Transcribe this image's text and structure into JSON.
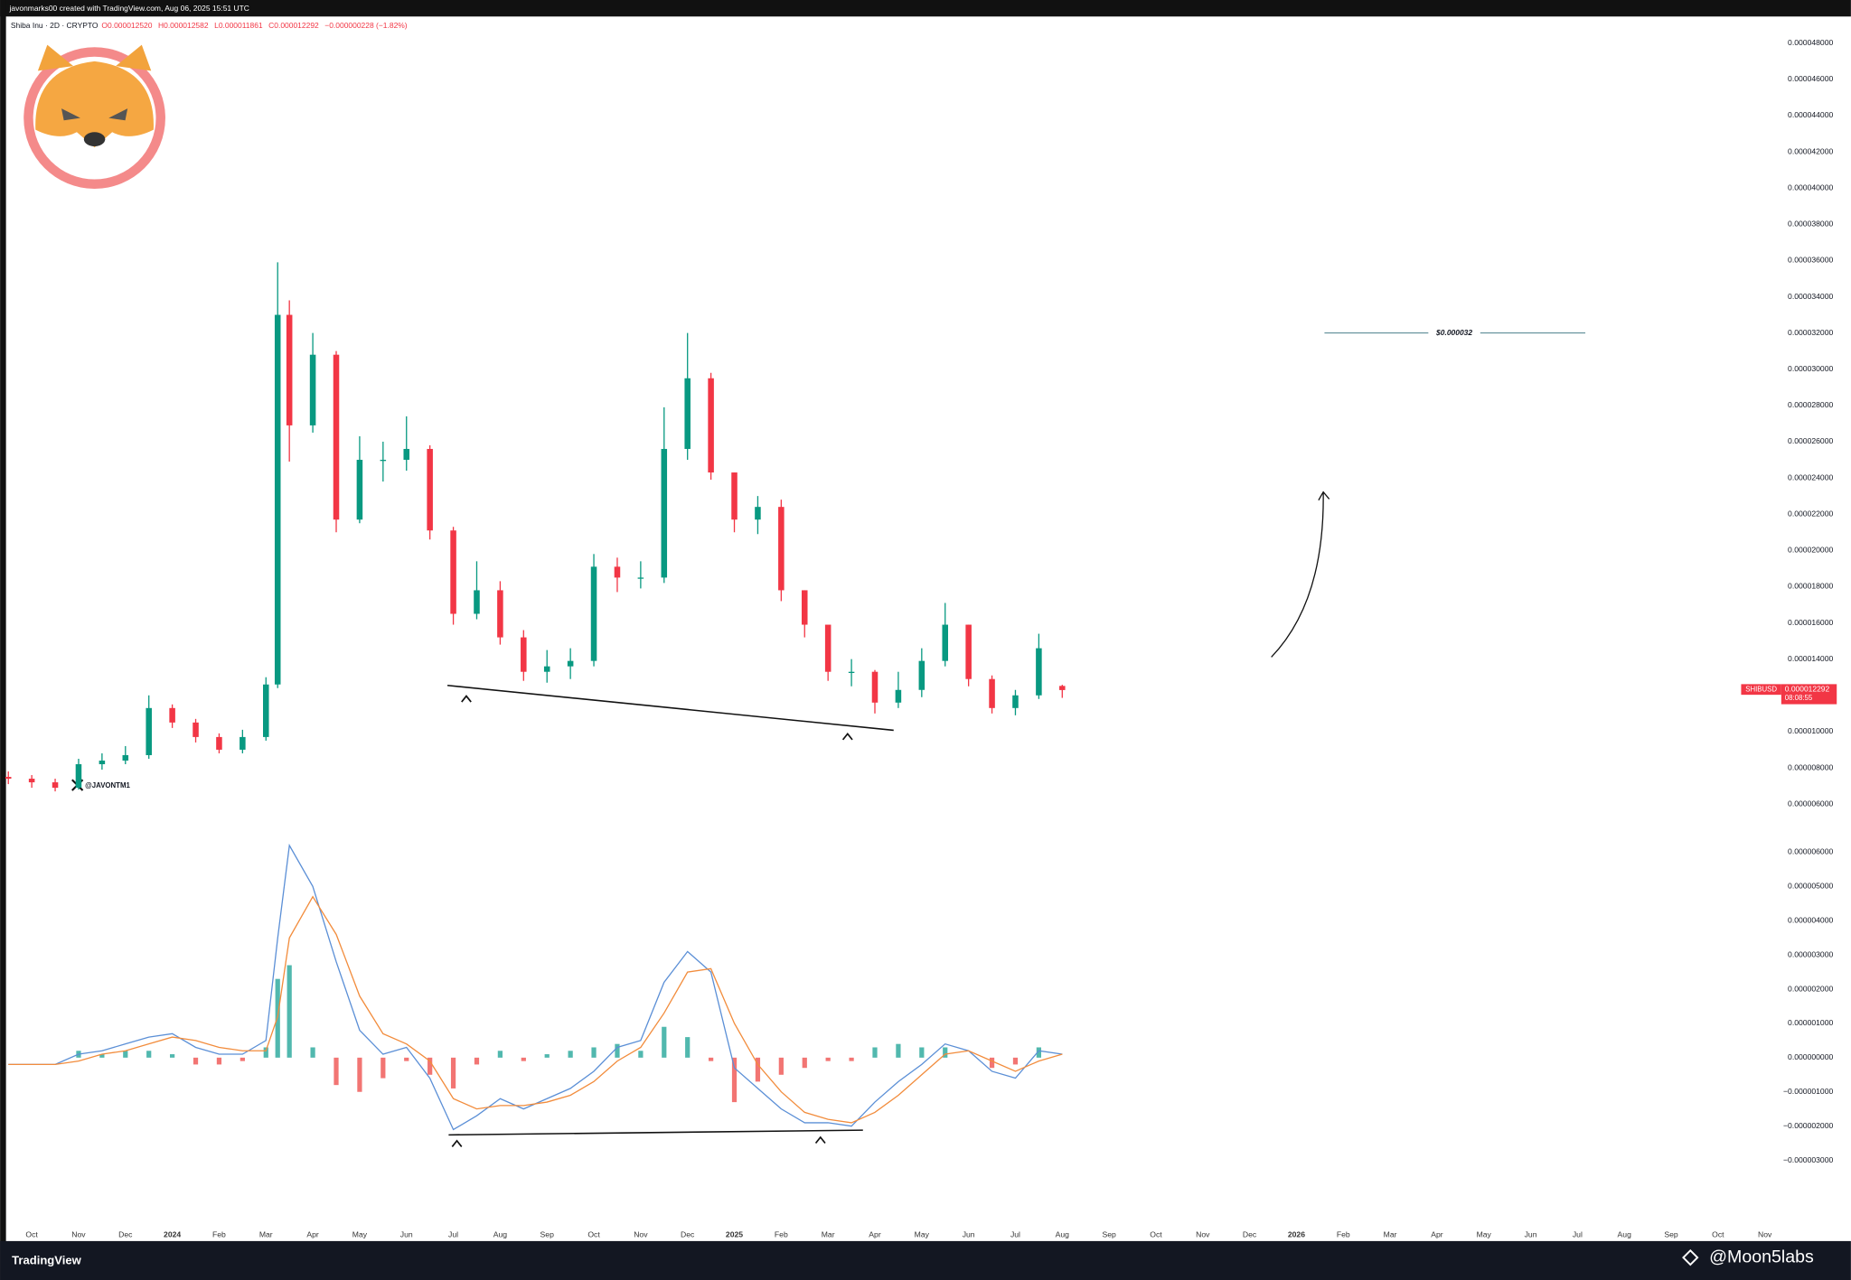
{
  "header": {
    "credit": "javonmarks00 created with TradingView.com, Aug 06, 2025 15:51 UTC",
    "footer_brand": "TradingView",
    "watermark": "@Moon5labs",
    "handle": "@JAVONTM1"
  },
  "chart_data": [
    {
      "type": "candlestick",
      "title": "Shiba Inu · 2D · CRYPTO",
      "ohlc_legend": [
        "O0.000012520",
        "H0.000012582",
        "L0.000011861",
        "C0.000012292",
        "−0.000000228 (−1.82%)"
      ],
      "up_color": "#089981",
      "down_color": "#f23645",
      "x": [
        -0.5,
        0,
        0.5,
        1,
        1.5,
        2,
        2.5,
        3,
        3.5,
        4,
        4.5,
        5,
        5.25,
        5.5,
        6,
        6.5,
        7,
        7.5,
        8,
        8.5,
        9,
        9.5,
        10,
        10.5,
        11,
        11.5,
        12,
        12.5,
        13,
        13.5,
        14,
        14.5,
        15,
        15.5,
        16,
        16.5,
        17,
        17.5,
        18,
        18.5,
        19,
        19.5,
        20,
        20.5,
        21,
        21.5,
        22
      ],
      "open": [
        7.5e-06,
        7.4e-06,
        7.2e-06,
        6.9e-06,
        8.2e-06,
        8.4e-06,
        8.7e-06,
        1.13e-05,
        1.05e-05,
        9.7e-06,
        9e-06,
        9.7e-06,
        1.26e-05,
        3.3e-05,
        2.69e-05,
        3.08e-05,
        2.17e-05,
        2.5e-05,
        2.5e-05,
        2.56e-05,
        2.11e-05,
        1.65e-05,
        1.78e-05,
        1.52e-05,
        1.33e-05,
        1.36e-05,
        1.39e-05,
        1.91e-05,
        1.85e-05,
        1.85e-05,
        2.56e-05,
        2.95e-05,
        2.43e-05,
        2.17e-05,
        2.24e-05,
        1.78e-05,
        1.59e-05,
        1.33e-05,
        1.33e-05,
        1.16e-05,
        1.23e-05,
        1.39e-05,
        1.59e-05,
        1.29e-05,
        1.13e-05,
        1.2e-05,
        1.252e-05
      ],
      "high": [
        7.8e-06,
        7.6e-06,
        7.4e-06,
        8.5e-06,
        8.8e-06,
        9.2e-06,
        1.2e-05,
        1.15e-05,
        1.07e-05,
        9.9e-06,
        1.01e-05,
        1.3e-05,
        3.59e-05,
        3.38e-05,
        3.2e-05,
        3.1e-05,
        2.63e-05,
        2.6e-05,
        2.74e-05,
        2.58e-05,
        2.13e-05,
        1.94e-05,
        1.83e-05,
        1.56e-05,
        1.45e-05,
        1.46e-05,
        1.98e-05,
        1.96e-05,
        1.94e-05,
        2.79e-05,
        3.2e-05,
        2.98e-05,
        2.43e-05,
        2.3e-05,
        2.28e-05,
        1.78e-05,
        1.58e-05,
        1.4e-05,
        1.34e-05,
        1.33e-05,
        1.46e-05,
        1.71e-05,
        1.59e-05,
        1.31e-05,
        1.23e-05,
        1.54e-05,
        1.2582e-05
      ],
      "low": [
        7.1e-06,
        6.9e-06,
        6.7e-06,
        6.8e-06,
        7.9e-06,
        8.2e-06,
        8.5e-06,
        1.02e-05,
        9.4e-06,
        8.8e-06,
        8.8e-06,
        9.5e-06,
        1.24e-05,
        2.49e-05,
        2.65e-05,
        2.1e-05,
        2.15e-05,
        2.38e-05,
        2.44e-05,
        2.06e-05,
        1.59e-05,
        1.62e-05,
        1.48e-05,
        1.28e-05,
        1.27e-05,
        1.29e-05,
        1.36e-05,
        1.77e-05,
        1.79e-05,
        1.82e-05,
        2.5e-05,
        2.39e-05,
        2.1e-05,
        2.09e-05,
        1.72e-05,
        1.52e-05,
        1.28e-05,
        1.25e-05,
        1.1e-05,
        1.13e-05,
        1.19e-05,
        1.36e-05,
        1.25e-05,
        1.1e-05,
        1.09e-05,
        1.18e-05,
        1.1861e-05
      ],
      "close": [
        7.4e-06,
        7.2e-06,
        6.9e-06,
        8.2e-06,
        8.4e-06,
        8.7e-06,
        1.13e-05,
        1.05e-05,
        9.7e-06,
        9e-06,
        9.7e-06,
        1.26e-05,
        3.3e-05,
        2.69e-05,
        3.08e-05,
        2.17e-05,
        2.5e-05,
        2.5e-05,
        2.56e-05,
        2.11e-05,
        1.65e-05,
        1.78e-05,
        1.52e-05,
        1.33e-05,
        1.36e-05,
        1.39e-05,
        1.91e-05,
        1.85e-05,
        1.85e-05,
        2.56e-05,
        2.95e-05,
        2.43e-05,
        2.17e-05,
        2.24e-05,
        1.78e-05,
        1.59e-05,
        1.33e-05,
        1.33e-05,
        1.16e-05,
        1.23e-05,
        1.39e-05,
        1.59e-05,
        1.29e-05,
        1.13e-05,
        1.2e-05,
        1.46e-05,
        1.2292e-05
      ],
      "xlim": [
        -0.55,
        37.3
      ],
      "ylim": [
        4.8e-06,
        4.94e-05
      ],
      "yticks": [
        {
          "value": 6e-06,
          "label": "0.000006000"
        },
        {
          "value": 8e-06,
          "label": "0.000008000"
        },
        {
          "value": 1e-05,
          "label": "0.000010000"
        },
        {
          "value": 1.2e-05,
          "label": "0.000012000"
        },
        {
          "value": 1.4e-05,
          "label": "0.000014000"
        },
        {
          "value": 1.6e-05,
          "label": "0.000016000"
        },
        {
          "value": 1.8e-05,
          "label": "0.000018000"
        },
        {
          "value": 2e-05,
          "label": "0.000020000"
        },
        {
          "value": 2.2e-05,
          "label": "0.000022000"
        },
        {
          "value": 2.4e-05,
          "label": "0.000024000"
        },
        {
          "value": 2.6e-05,
          "label": "0.000026000"
        },
        {
          "value": 2.8e-05,
          "label": "0.000028000"
        },
        {
          "value": 3e-05,
          "label": "0.000030000"
        },
        {
          "value": 3.2e-05,
          "label": "0.000032000"
        },
        {
          "value": 3.4e-05,
          "label": "0.000034000"
        },
        {
          "value": 3.6e-05,
          "label": "0.000036000"
        },
        {
          "value": 3.8e-05,
          "label": "0.000038000"
        },
        {
          "value": 4e-05,
          "label": "0.000040000"
        },
        {
          "value": 4.2e-05,
          "label": "0.000042000"
        },
        {
          "value": 4.4e-05,
          "label": "0.000044000"
        },
        {
          "value": 4.6e-05,
          "label": "0.000046000"
        },
        {
          "value": 4.8e-05,
          "label": "0.000048000"
        }
      ],
      "last_price": {
        "symbol": "SHIBUSD",
        "value": 1.2292e-05,
        "label": "0.000012292",
        "countdown": "08:08:55"
      },
      "target": {
        "value": 3.2e-05,
        "label": "$0.000032"
      }
    },
    {
      "type": "macd",
      "macd_color": "#5b8fd6",
      "signal_color": "#f28c3c",
      "up_color": "#26a69a",
      "down_color": "#ef5350",
      "x": [
        -0.5,
        0,
        0.5,
        1,
        1.5,
        2,
        2.5,
        3,
        3.5,
        4,
        4.5,
        5,
        5.25,
        5.5,
        6,
        6.5,
        7,
        7.5,
        8,
        8.5,
        9,
        9.5,
        10,
        10.5,
        11,
        11.5,
        12,
        12.5,
        13,
        13.5,
        14,
        14.5,
        15,
        15.5,
        16,
        16.5,
        17,
        17.5,
        18,
        18.5,
        19,
        19.5,
        20,
        20.5,
        21,
        21.5,
        22
      ],
      "macd": [
        -2e-07,
        -2e-07,
        -2e-07,
        1e-07,
        2e-07,
        4e-07,
        6e-07,
        7e-07,
        3e-07,
        1e-07,
        1e-07,
        5e-07,
        3.5e-06,
        6.2e-06,
        5e-06,
        2.8e-06,
        8e-07,
        1e-07,
        3e-07,
        -6e-07,
        -2.1e-06,
        -1.7e-06,
        -1.2e-06,
        -1.5e-06,
        -1.2e-06,
        -9e-07,
        -4e-07,
        3e-07,
        5e-07,
        2.2e-06,
        3.1e-06,
        2.5e-06,
        -3e-07,
        -9e-07,
        -1.5e-06,
        -1.9e-06,
        -1.9e-06,
        -2e-06,
        -1.3e-06,
        -7e-07,
        -2e-07,
        4e-07,
        2e-07,
        -4e-07,
        -6e-07,
        2e-07,
        1e-07
      ],
      "signal": [
        -2e-07,
        -2e-07,
        -2e-07,
        -1e-07,
        1e-07,
        2e-07,
        4e-07,
        6e-07,
        5e-07,
        3e-07,
        2e-07,
        2e-07,
        1.2e-06,
        3.5e-06,
        4.7e-06,
        3.6e-06,
        1.8e-06,
        7e-07,
        4e-07,
        -1e-07,
        -1.2e-06,
        -1.5e-06,
        -1.4e-06,
        -1.4e-06,
        -1.3e-06,
        -1.1e-06,
        -7e-07,
        -1e-07,
        3e-07,
        1.3e-06,
        2.5e-06,
        2.6e-06,
        1e-06,
        -2e-07,
        -1e-06,
        -1.6e-06,
        -1.8e-06,
        -1.9e-06,
        -1.6e-06,
        -1.1e-06,
        -5e-07,
        1e-07,
        2e-07,
        -1e-07,
        -4e-07,
        -1e-07,
        1e-07
      ],
      "histogram": [
        0,
        0,
        0,
        2e-07,
        1e-07,
        2e-07,
        2e-07,
        1e-07,
        -2e-07,
        -2e-07,
        -1e-07,
        3e-07,
        2.3e-06,
        2.7e-06,
        3e-07,
        -8e-07,
        -1e-06,
        -6e-07,
        -1e-07,
        -5e-07,
        -9e-07,
        -2e-07,
        2e-07,
        -1e-07,
        1e-07,
        2e-07,
        3e-07,
        4e-07,
        2e-07,
        9e-07,
        6e-07,
        -1e-07,
        -1.3e-06,
        -7e-07,
        -5e-07,
        -3e-07,
        -1e-07,
        -1e-07,
        3e-07,
        4e-07,
        3e-07,
        3e-07,
        0,
        -3e-07,
        -2e-07,
        3e-07,
        0
      ],
      "xlim": [
        -0.55,
        37.3
      ],
      "ylim": [
        -4.6e-06,
        6.6e-06
      ],
      "yticks": [
        {
          "value": -3e-06,
          "label": "−0.000003000"
        },
        {
          "value": -2e-06,
          "label": "−0.000002000"
        },
        {
          "value": -1e-06,
          "label": "−0.000001000"
        },
        {
          "value": 0,
          "label": "0.000000000"
        },
        {
          "value": 1e-06,
          "label": "0.000001000"
        },
        {
          "value": 2e-06,
          "label": "0.000002000"
        },
        {
          "value": 3e-06,
          "label": "0.000003000"
        },
        {
          "value": 4e-06,
          "label": "0.000004000"
        },
        {
          "value": 5e-06,
          "label": "0.000005000"
        },
        {
          "value": 6e-06,
          "label": "0.000006000"
        }
      ],
      "xticks": [
        {
          "value": 0,
          "label": "Oct"
        },
        {
          "value": 1,
          "label": "Nov"
        },
        {
          "value": 2,
          "label": "Dec"
        },
        {
          "value": 3,
          "label": "2024"
        },
        {
          "value": 4,
          "label": "Feb"
        },
        {
          "value": 5,
          "label": "Mar"
        },
        {
          "value": 6,
          "label": "Apr"
        },
        {
          "value": 7,
          "label": "May"
        },
        {
          "value": 8,
          "label": "Jun"
        },
        {
          "value": 9,
          "label": "Jul"
        },
        {
          "value": 10,
          "label": "Aug"
        },
        {
          "value": 11,
          "label": "Sep"
        },
        {
          "value": 12,
          "label": "Oct"
        },
        {
          "value": 13,
          "label": "Nov"
        },
        {
          "value": 14,
          "label": "Dec"
        },
        {
          "value": 15,
          "label": "2025"
        },
        {
          "value": 16,
          "label": "Feb"
        },
        {
          "value": 17,
          "label": "Mar"
        },
        {
          "value": 18,
          "label": "Apr"
        },
        {
          "value": 19,
          "label": "May"
        },
        {
          "value": 20,
          "label": "Jun"
        },
        {
          "value": 21,
          "label": "Jul"
        },
        {
          "value": 22,
          "label": "Aug"
        },
        {
          "value": 23,
          "label": "Sep"
        },
        {
          "value": 24,
          "label": "Oct"
        },
        {
          "value": 25,
          "label": "Nov"
        },
        {
          "value": 26,
          "label": "Dec"
        },
        {
          "value": 27,
          "label": "2026"
        },
        {
          "value": 28,
          "label": "Feb"
        },
        {
          "value": 29,
          "label": "Mar"
        },
        {
          "value": 30,
          "label": "Apr"
        },
        {
          "value": 31,
          "label": "May"
        },
        {
          "value": 32,
          "label": "Jun"
        },
        {
          "value": 33,
          "label": "Jul"
        },
        {
          "value": 34,
          "label": "Aug"
        },
        {
          "value": 35,
          "label": "Sep"
        },
        {
          "value": 36,
          "label": "Oct"
        },
        {
          "value": 37,
          "label": "Nov"
        }
      ]
    }
  ]
}
